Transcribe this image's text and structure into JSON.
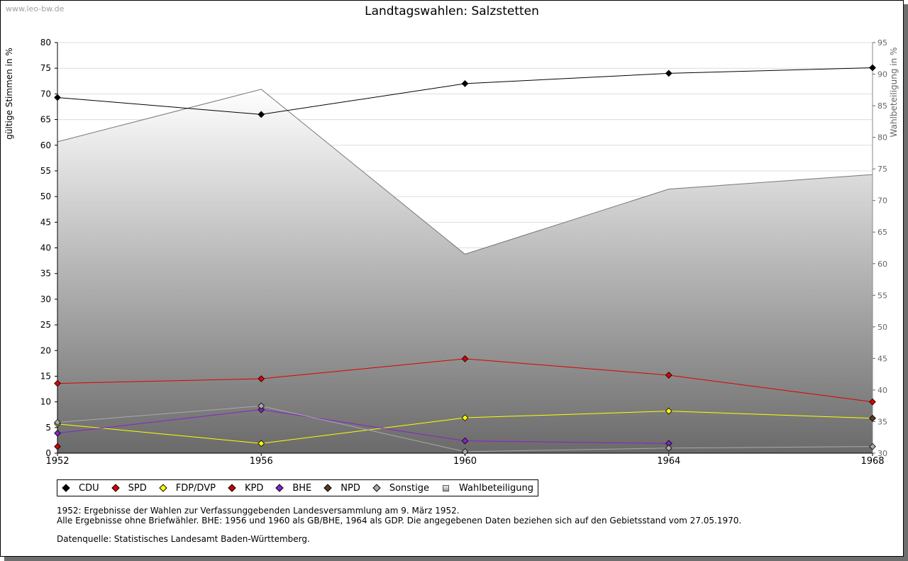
{
  "watermark": "www.leo-bw.de",
  "chart_data": {
    "type": "line",
    "title": "Landtagswahlen: Salzstetten",
    "ylabel": "gültige Stimmen in %",
    "y2label": "Wahlbeteiligung in %",
    "x": [
      "1952",
      "1956",
      "1960",
      "1964",
      "1968"
    ],
    "ylim": [
      0,
      80
    ],
    "y2lim": [
      30,
      95
    ],
    "yticks": [
      "0",
      "5",
      "10",
      "15",
      "20",
      "25",
      "30",
      "35",
      "40",
      "45",
      "50",
      "55",
      "60",
      "65",
      "70",
      "75",
      "80"
    ],
    "y2ticks": [
      "30",
      "35",
      "40",
      "45",
      "50",
      "55",
      "60",
      "65",
      "70",
      "75",
      "80",
      "85",
      "90",
      "95"
    ],
    "grid": true,
    "legend_position": "bottom",
    "series": [
      {
        "name": "CDU",
        "color": "#000000",
        "values": [
          69.3,
          66.0,
          72.0,
          74.0,
          75.1
        ]
      },
      {
        "name": "SPD",
        "color": "#dd0000",
        "values": [
          13.6,
          14.5,
          18.4,
          15.2,
          10.0
        ]
      },
      {
        "name": "FDP/DVP",
        "color": "#ffff00",
        "values": [
          5.7,
          1.9,
          6.9,
          8.2,
          6.8
        ]
      },
      {
        "name": "KPD",
        "color": "#cc0000",
        "values": [
          1.3,
          null,
          null,
          null,
          null
        ]
      },
      {
        "name": "BHE",
        "color": "#8822cc",
        "values": [
          3.9,
          8.5,
          2.4,
          1.9,
          null
        ]
      },
      {
        "name": "NPD",
        "color": "#5a3a22",
        "values": [
          null,
          null,
          null,
          null,
          6.8
        ]
      },
      {
        "name": "Sonstige",
        "color": "#aaaaaa",
        "values": [
          6.0,
          9.2,
          0.3,
          1.0,
          1.3
        ]
      }
    ],
    "turnout": {
      "name": "Wahlbeteiligung",
      "axis": "right",
      "values": [
        79.3,
        87.6,
        61.5,
        71.8,
        74.1
      ]
    }
  },
  "notes": {
    "line1": "1952: Ergebnisse der Wahlen zur Verfassunggebenden Landesversammlung am 9. März 1952.",
    "line2": "Alle Ergebnisse ohne Briefwähler. BHE: 1956 und 1960 als GB/BHE, 1964 als GDP. Die angegebenen Daten beziehen sich auf den Gebietsstand vom 27.05.1970.",
    "source": "Datenquelle: Statistisches Landesamt Baden-Württemberg."
  }
}
